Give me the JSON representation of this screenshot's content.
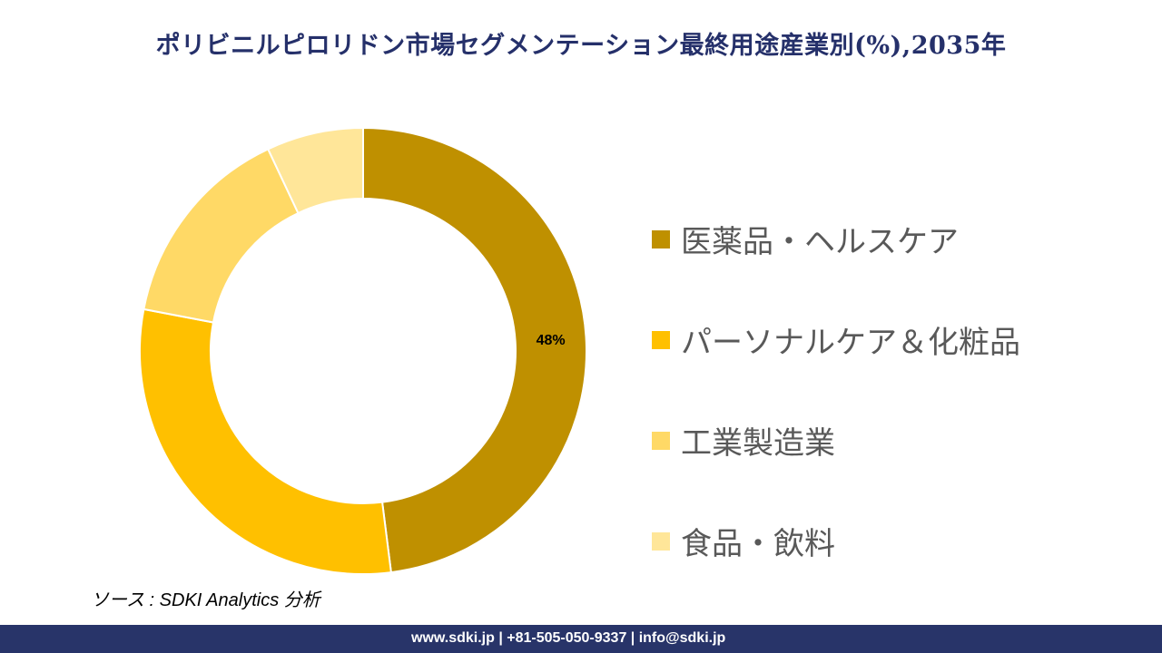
{
  "title": "ポリビニルピロリドン市場セグメンテーション最終用途産業別(%),2035年",
  "chart_data": {
    "type": "pie",
    "variant": "donut",
    "title": "ポリビニルピロリドン市場セグメンテーション最終用途産業別(%),2035年",
    "categories": [
      "医薬品・ヘルスケア",
      "パーソナルケア＆化粧品",
      "工業製造業",
      "食品・飲料"
    ],
    "values": [
      48,
      30,
      15,
      7
    ],
    "colors": [
      "#BF9000",
      "#FFC000",
      "#FFD966",
      "#FFE699"
    ],
    "data_labels": [
      "48%",
      null,
      null,
      null
    ],
    "legend_position": "right"
  },
  "source": "ソース : SDKI Analytics  分析",
  "footer": "www.sdki.jp | +81-505-050-9337 | info@sdki.jp"
}
